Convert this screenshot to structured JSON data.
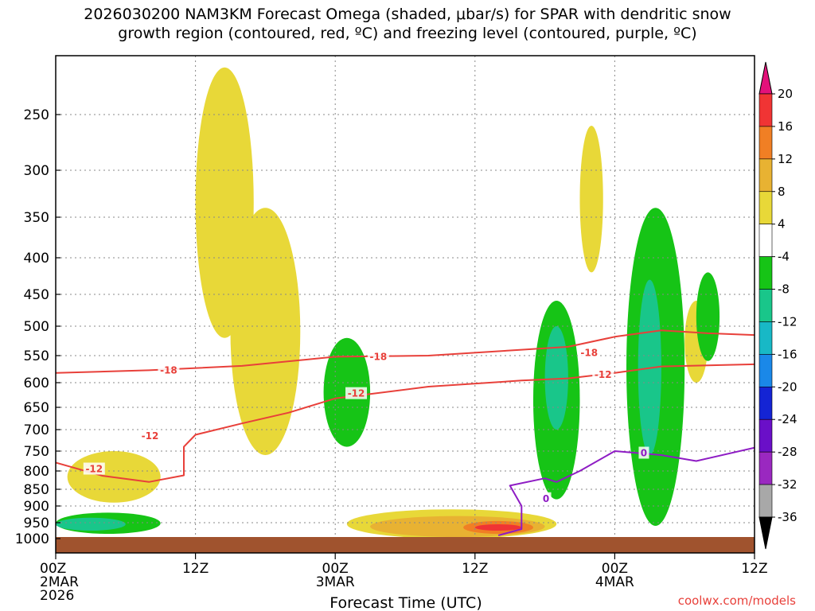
{
  "title": {
    "line1": "2026030200 NAM3KM Forecast Omega (shaded, μbar/s) for SPAR with dendritic snow",
    "line2": "growth region (contoured, red, ºC) and freezing level (contoured, purple, ºC)"
  },
  "credit": "coolwx.com/models",
  "chart_data": {
    "type": "heatmap",
    "title": "2026030200 NAM3KM Forecast Omega (shaded, μbar/s) for SPAR with dendritic snow growth region (contoured, red, ºC) and freezing level (contoured, purple, ºC)",
    "xlabel": "Forecast Time (UTC)",
    "ylabel": "",
    "x_ticks": [
      {
        "hour": 0,
        "l1": "00Z",
        "l2": "2MAR",
        "l3": "2026"
      },
      {
        "hour": 12,
        "l1": "12Z",
        "l2": "",
        "l3": ""
      },
      {
        "hour": 24,
        "l1": "00Z",
        "l2": "3MAR",
        "l3": ""
      },
      {
        "hour": 36,
        "l1": "12Z",
        "l2": "",
        "l3": ""
      },
      {
        "hour": 48,
        "l1": "00Z",
        "l2": "4MAR",
        "l3": ""
      },
      {
        "hour": 60,
        "l1": "12Z",
        "l2": "",
        "l3": ""
      }
    ],
    "y_ticks": [
      250,
      300,
      350,
      400,
      450,
      500,
      550,
      600,
      650,
      700,
      750,
      800,
      850,
      900,
      950,
      1000
    ],
    "xlim": [
      0,
      60
    ],
    "ylim_hPa": [
      200,
      1030
    ],
    "colorbar": {
      "labels": [
        "20",
        "16",
        "12",
        "8",
        "4",
        "-4",
        "-8",
        "-12",
        "-16",
        "-20",
        "-24",
        "-28",
        "-32",
        "-36"
      ],
      "colors": [
        "#e3117a",
        "#f03434",
        "#f07f24",
        "#e8b232",
        "#e8d838",
        "#ffffff",
        "#16c416",
        "#19c68a",
        "#18b8c6",
        "#1a88e8",
        "#1424d4",
        "#6a0fc8",
        "#9a28c0",
        "#a8a8a8",
        "#000000"
      ]
    },
    "omega_regions": [
      {
        "sign": "positive",
        "level": 4,
        "hours": [
          12,
          17
        ],
        "hPa": [
          210,
          520
        ]
      },
      {
        "sign": "positive",
        "level": 4,
        "hours": [
          15,
          21
        ],
        "hPa": [
          340,
          760
        ]
      },
      {
        "sign": "positive",
        "level": 4,
        "hours": [
          1,
          9
        ],
        "hPa": [
          750,
          890
        ]
      },
      {
        "sign": "positive",
        "level": 4,
        "hours": [
          25,
          43
        ],
        "hPa": [
          910,
          1000
        ]
      },
      {
        "sign": "positive",
        "level": 8,
        "hours": [
          27,
          42
        ],
        "hPa": [
          930,
          995
        ]
      },
      {
        "sign": "positive",
        "level": 12,
        "hours": [
          35,
          41
        ],
        "hPa": [
          945,
          985
        ]
      },
      {
        "sign": "positive",
        "level": 16,
        "hours": [
          36,
          40
        ],
        "hPa": [
          955,
          975
        ]
      },
      {
        "sign": "positive",
        "level": 4,
        "hours": [
          45,
          47
        ],
        "hPa": [
          260,
          420
        ]
      },
      {
        "sign": "positive",
        "level": 4,
        "hours": [
          54,
          56
        ],
        "hPa": [
          460,
          600
        ]
      },
      {
        "sign": "negative",
        "level": -4,
        "hours": [
          23,
          27
        ],
        "hPa": [
          520,
          740
        ]
      },
      {
        "sign": "negative",
        "level": -4,
        "hours": [
          41,
          45
        ],
        "hPa": [
          460,
          880
        ]
      },
      {
        "sign": "negative",
        "level": -8,
        "hours": [
          42,
          44
        ],
        "hPa": [
          500,
          700
        ]
      },
      {
        "sign": "negative",
        "level": -4,
        "hours": [
          49,
          54
        ],
        "hPa": [
          340,
          960
        ]
      },
      {
        "sign": "negative",
        "level": -8,
        "hours": [
          50,
          52
        ],
        "hPa": [
          430,
          760
        ]
      },
      {
        "sign": "negative",
        "level": -4,
        "hours": [
          0,
          9
        ],
        "hPa": [
          920,
          985
        ]
      },
      {
        "sign": "negative",
        "level": -8,
        "hours": [
          0,
          6
        ],
        "hPa": [
          935,
          975
        ]
      },
      {
        "sign": "negative",
        "level": -4,
        "hours": [
          55,
          57
        ],
        "hPa": [
          420,
          560
        ]
      }
    ],
    "contours": [
      {
        "name": "-18",
        "color": "#e8403a",
        "points": [
          [
            0,
            582
          ],
          [
            8,
            577
          ],
          [
            16,
            569
          ],
          [
            24,
            552
          ],
          [
            32,
            550
          ],
          [
            40,
            540
          ],
          [
            44,
            535
          ],
          [
            48,
            518
          ],
          [
            52,
            507
          ],
          [
            56,
            512
          ],
          [
            60,
            515
          ]
        ]
      },
      {
        "name": "-12",
        "color": "#e8403a",
        "points": [
          [
            0,
            779
          ],
          [
            4,
            813
          ],
          [
            8,
            830
          ],
          [
            11,
            812
          ],
          [
            11,
            740
          ],
          [
            12,
            712
          ],
          [
            16,
            686
          ],
          [
            20,
            662
          ],
          [
            24,
            632
          ],
          [
            32,
            608
          ],
          [
            40,
            596
          ],
          [
            44,
            592
          ],
          [
            48,
            582
          ],
          [
            52,
            570
          ],
          [
            56,
            568
          ],
          [
            60,
            566
          ]
        ]
      },
      {
        "name": "0",
        "color": "#8e1cc4",
        "points": [
          [
            38,
            990
          ],
          [
            40,
            970
          ],
          [
            40,
            900
          ],
          [
            39,
            840
          ],
          [
            42,
            820
          ],
          [
            43,
            830
          ],
          [
            45,
            800
          ],
          [
            48,
            750
          ],
          [
            52,
            760
          ],
          [
            55,
            775
          ],
          [
            60,
            742
          ]
        ]
      }
    ],
    "contour_labels": [
      {
        "text": "-18",
        "hour": 9.7,
        "hPa": 577,
        "color": "#e8403a"
      },
      {
        "text": "-18",
        "hour": 27.7,
        "hPa": 552,
        "color": "#e8403a"
      },
      {
        "text": "-18",
        "hour": 45.8,
        "hPa": 545,
        "color": "#e8403a"
      },
      {
        "text": "-12",
        "hour": 8.1,
        "hPa": 715,
        "color": "#e8403a"
      },
      {
        "text": "-12",
        "hour": 3.3,
        "hPa": 795,
        "color": "#e8403a"
      },
      {
        "text": "-12",
        "hour": 25.8,
        "hPa": 622,
        "color": "#e8403a"
      },
      {
        "text": "-12",
        "hour": 47.0,
        "hPa": 585,
        "color": "#e8403a"
      },
      {
        "text": "0",
        "hour": 50.5,
        "hPa": 755,
        "color": "#8e1cc4"
      },
      {
        "text": "0",
        "hour": 42.1,
        "hPa": 878,
        "color": "#8e1cc4"
      }
    ]
  }
}
